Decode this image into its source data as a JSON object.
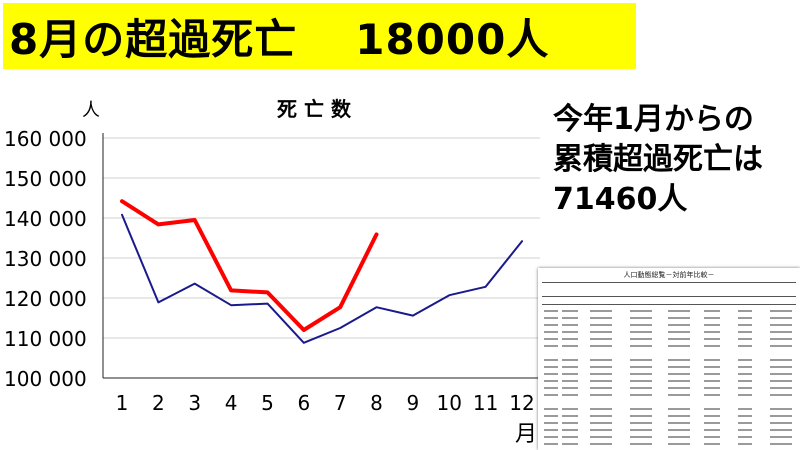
{
  "headline": {
    "left": "8月の超過死亡",
    "right": "18000人"
  },
  "note_lines": [
    "今年1月からの",
    "累積超過死亡は",
    "71460人"
  ],
  "table_thumb": {
    "title": "人口動態総覧－対前年比較－",
    "legibility": "too small to read"
  },
  "chart_data": {
    "type": "line",
    "title": "死 亡 数",
    "ylabel": "人",
    "xlabel": "月",
    "categories": [
      "1",
      "2",
      "3",
      "4",
      "5",
      "6",
      "7",
      "8",
      "9",
      "10",
      "11",
      "12"
    ],
    "ylim": [
      100000,
      160000
    ],
    "yticks": [
      100000,
      110000,
      120000,
      130000,
      140000,
      150000,
      160000
    ],
    "ytick_labels": [
      "100 000",
      "110 000",
      "120 000",
      "130 000",
      "140 000",
      "150 000",
      "160 000"
    ],
    "series": [
      {
        "color": "#1a1a8c",
        "width": 2,
        "values": [
          140800,
          118900,
          123600,
          118200,
          118600,
          108800,
          112500,
          117700,
          115600,
          120700,
          122800,
          134200
        ]
      },
      {
        "color": "#ff0000",
        "width": 4,
        "values": [
          144200,
          138400,
          139500,
          121900,
          121400,
          112000,
          117700,
          135900,
          null,
          null,
          null,
          null
        ]
      }
    ],
    "grid": "horizontal"
  }
}
